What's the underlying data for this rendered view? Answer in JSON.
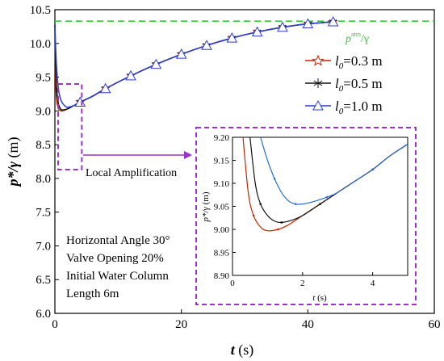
{
  "chart_data": [
    {
      "type": "line",
      "title": "",
      "xlabel_italic": "t",
      "xlabel_unit": " (s)",
      "ylabel_italic": "p*/γ",
      "ylabel_unit": " (m)",
      "xlim": [
        0,
        60
      ],
      "ylim": [
        6.0,
        10.5
      ],
      "xticks": [
        0,
        20,
        40,
        60
      ],
      "yticks": [
        6.0,
        6.5,
        7.0,
        7.5,
        8.0,
        8.5,
        9.0,
        9.5,
        10.0,
        10.5
      ],
      "ytick_labels": [
        "6.0",
        "6.5",
        "7.0",
        "7.5",
        "8.0",
        "8.5",
        "9.0",
        "9.5",
        "10.0",
        "10.5"
      ],
      "reference_line": {
        "label_main": "p",
        "label_sup": "atm",
        "label_tail": "/γ",
        "value": 10.33,
        "color": "#33cc33"
      },
      "legend": {
        "position": "top-right"
      },
      "series": [
        {
          "name_italic": "l",
          "name_sub": "0",
          "name_tail": "=0.3 m",
          "color": "#cc2200",
          "marker": "star",
          "x": [
            0,
            0.1,
            0.3,
            0.6,
            1.0,
            1.5,
            2.0,
            3.0,
            4.0,
            6.0,
            8.0,
            12.0,
            16.0,
            20.0,
            24.0,
            28.0,
            32.0,
            36.0,
            40.0,
            44.0
          ],
          "y": [
            10.28,
            9.5,
            9.15,
            9.03,
            9.0,
            9.01,
            9.03,
            9.08,
            9.13,
            9.22,
            9.33,
            9.52,
            9.69,
            9.84,
            9.97,
            10.08,
            10.17,
            10.24,
            10.29,
            10.32
          ]
        },
        {
          "name_italic": "l",
          "name_sub": "0",
          "name_tail": "=0.5 m",
          "color": "#111111",
          "marker": "asterisk",
          "x": [
            0,
            0.1,
            0.3,
            0.6,
            1.0,
            1.3,
            2.0,
            3.0,
            4.0,
            6.0,
            8.0,
            12.0,
            16.0,
            20.0,
            24.0,
            28.0,
            32.0,
            36.0,
            40.0,
            44.0
          ],
          "y": [
            10.28,
            9.7,
            9.3,
            9.09,
            9.02,
            9.015,
            9.03,
            9.08,
            9.13,
            9.22,
            9.33,
            9.52,
            9.69,
            9.84,
            9.97,
            10.08,
            10.17,
            10.24,
            10.29,
            10.32
          ]
        },
        {
          "name_italic": "l",
          "name_sub": "0",
          "name_tail": "=1.0 m",
          "color": "#2a3fd0",
          "marker": "triangle",
          "x": [
            0,
            0.1,
            0.3,
            0.6,
            1.0,
            1.5,
            2.0,
            3.0,
            4.0,
            6.0,
            8.0,
            12.0,
            16.0,
            20.0,
            24.0,
            28.0,
            32.0,
            36.0,
            40.0,
            44.0
          ],
          "y": [
            10.28,
            10.0,
            9.6,
            9.3,
            9.15,
            9.08,
            9.055,
            9.08,
            9.13,
            9.22,
            9.33,
            9.52,
            9.69,
            9.84,
            9.97,
            10.08,
            10.17,
            10.24,
            10.29,
            10.32
          ]
        }
      ],
      "annotations": {
        "zoom_label": "Local Amplification",
        "conditions": [
          "Horizontal Angle 30°",
          "Valve Opening 20%",
          "Initial Water Column",
          "Length 6m"
        ],
        "zoom_box_region": {
          "x": [
            0,
            4
          ],
          "y": [
            8.9,
            9.4
          ]
        },
        "highlight_color": "#9933cc"
      }
    },
    {
      "type": "line",
      "title": "",
      "role": "inset",
      "xlabel_italic": "t",
      "xlabel_unit": " (s)",
      "ylabel_italic": "p*/γ",
      "ylabel_unit": " (m)",
      "xlim": [
        0,
        5
      ],
      "ylim": [
        8.9,
        9.2
      ],
      "xticks": [
        0,
        2,
        4
      ],
      "yticks": [
        8.9,
        8.95,
        9.0,
        9.05,
        9.1,
        9.15,
        9.2
      ],
      "ytick_labels": [
        "8.90",
        "8.95",
        "9.00",
        "9.05",
        "9.10",
        "9.15",
        "9.20"
      ],
      "series": [
        {
          "color": "#cc2200",
          "x": [
            0.3,
            0.45,
            0.6,
            0.8,
            1.0,
            1.3,
            1.6,
            2.0,
            2.5,
            3.0,
            3.5,
            4.0,
            4.5,
            5.0
          ],
          "y": [
            9.2,
            9.08,
            9.03,
            9.005,
            8.997,
            9.0,
            9.01,
            9.03,
            9.055,
            9.08,
            9.105,
            9.13,
            9.16,
            9.185
          ]
        },
        {
          "color": "#111111",
          "x": [
            0.5,
            0.65,
            0.8,
            1.0,
            1.2,
            1.4,
            1.7,
            2.0,
            2.5,
            3.0,
            3.5,
            4.0,
            4.5,
            5.0
          ],
          "y": [
            9.2,
            9.1,
            9.055,
            9.03,
            9.018,
            9.015,
            9.02,
            9.03,
            9.055,
            9.08,
            9.105,
            9.13,
            9.16,
            9.185
          ]
        },
        {
          "color": "#2a6fd0",
          "x": [
            0.8,
            1.0,
            1.2,
            1.4,
            1.6,
            1.8,
            2.0,
            2.3,
            2.7,
            3.0,
            3.5,
            4.0,
            4.5,
            5.0
          ],
          "y": [
            9.2,
            9.15,
            9.11,
            9.08,
            9.062,
            9.055,
            9.055,
            9.06,
            9.07,
            9.08,
            9.105,
            9.13,
            9.16,
            9.185
          ]
        }
      ]
    }
  ]
}
